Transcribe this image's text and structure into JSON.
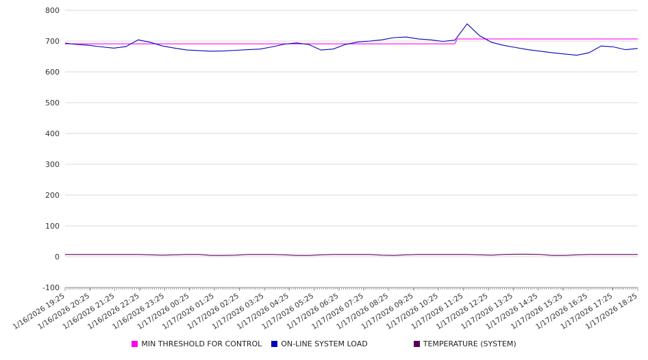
{
  "chart_data": {
    "type": "line",
    "title": "",
    "xlabel": "",
    "ylabel": "",
    "ylim": [
      -100,
      800
    ],
    "y_ticks": [
      800,
      700,
      600,
      500,
      400,
      300,
      200,
      100,
      0,
      -100
    ],
    "grid": true,
    "legend_position": "bottom-center",
    "x_labels": [
      "1/16/2026 19:25",
      "1/16/2026 20:25",
      "1/16/2026 21:25",
      "1/16/2026 22:25",
      "1/16/2026 23:25",
      "1/17/2026 00:25",
      "1/17/2026 01:25",
      "1/17/2026 02:25",
      "1/17/2026 03:25",
      "1/17/2026 04:25",
      "1/17/2026 05:25",
      "1/17/2026 06:25",
      "1/17/2026 07:25",
      "1/17/2026 08:25",
      "1/17/2026 09:25",
      "1/17/2026 10:25",
      "1/17/2026 11:25",
      "1/17/2026 12:25",
      "1/17/2026 13:25",
      "1/17/2026 14:25",
      "1/17/2026 15:25",
      "1/17/2026 16:25",
      "1/17/2026 17:25",
      "1/17/2026 18:25"
    ],
    "series": [
      {
        "name": "MIN THRESHOLD FOR CONTROL",
        "color": "#ff00ee",
        "points": [
          [
            0,
            691
          ],
          [
            15.65,
            691
          ],
          [
            15.75,
            707
          ],
          [
            23,
            707
          ]
        ]
      },
      {
        "name": "ON-LINE SYSTEM LOAD",
        "color": "#0000bb",
        "values": [
          693,
          689,
          686,
          681,
          677,
          682,
          704,
          696,
          684,
          677,
          671,
          669,
          667,
          668,
          670,
          672,
          674,
          681,
          690,
          694,
          689,
          671,
          674,
          689,
          697,
          700,
          704,
          711,
          713,
          707,
          704,
          699,
          703,
          756,
          718,
          696,
          686,
          679,
          672,
          667,
          662,
          658,
          654,
          662,
          684,
          681,
          672,
          676
        ]
      },
      {
        "name": "TEMPERATURE (SYSTEM)",
        "color": "#5c005c",
        "values": [
          7,
          7,
          7,
          7,
          7,
          7,
          7,
          6,
          5,
          6,
          7,
          7,
          4,
          4,
          5,
          7,
          7,
          7,
          6,
          4,
          4,
          6,
          7,
          7,
          7,
          7,
          5,
          4,
          6,
          7,
          7,
          7,
          7,
          7,
          6,
          5,
          7,
          8,
          8,
          7,
          4,
          4,
          6,
          7,
          7,
          7,
          7,
          7
        ]
      }
    ]
  }
}
